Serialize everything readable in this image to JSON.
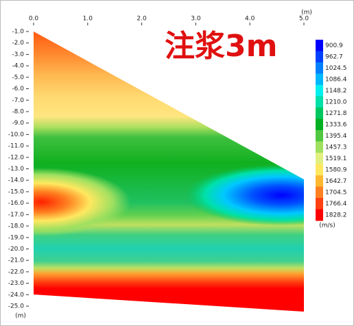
{
  "chart_data": {
    "type": "contour",
    "title": "注浆3m",
    "x_unit": "(m)",
    "y_unit": "(m)",
    "xlim": [
      0,
      5
    ],
    "xticks": [
      {
        "value": 0,
        "label": "0.0"
      },
      {
        "value": 1,
        "label": "1.0"
      },
      {
        "value": 2,
        "label": "2.0"
      },
      {
        "value": 3,
        "label": "3.0"
      },
      {
        "value": 4,
        "label": "4.0"
      },
      {
        "value": 5,
        "label": "5.0"
      }
    ],
    "ylim": [
      -1,
      -25
    ],
    "yticks": [
      {
        "value": -1,
        "label": "-1.0"
      },
      {
        "value": -2,
        "label": "-2.0"
      },
      {
        "value": -3,
        "label": "-3.0"
      },
      {
        "value": -4,
        "label": "-4.0"
      },
      {
        "value": -5,
        "label": "-5.0"
      },
      {
        "value": -6,
        "label": "-6.0"
      },
      {
        "value": -7,
        "label": "-7.0"
      },
      {
        "value": -8,
        "label": "-8.0"
      },
      {
        "value": -9,
        "label": "-9.0"
      },
      {
        "value": -10,
        "label": "-10.0"
      },
      {
        "value": -11,
        "label": "-11.0"
      },
      {
        "value": -12,
        "label": "-12.0"
      },
      {
        "value": -13,
        "label": "-13.0"
      },
      {
        "value": -14,
        "label": "-14.0"
      },
      {
        "value": -15,
        "label": "-15.0"
      },
      {
        "value": -16,
        "label": "-16.0"
      },
      {
        "value": -17,
        "label": "-17.0"
      },
      {
        "value": -18,
        "label": "-18.0"
      },
      {
        "value": -19,
        "label": "-19.0"
      },
      {
        "value": -20,
        "label": "-20.0"
      },
      {
        "value": -21,
        "label": "-21.0"
      },
      {
        "value": -22,
        "label": "-22.0"
      },
      {
        "value": -23,
        "label": "-23.0"
      },
      {
        "value": -24,
        "label": "-24.0"
      },
      {
        "value": -25,
        "label": "-25.0"
      }
    ],
    "colorbar": {
      "unit": "(m/s)",
      "ticks": [
        900.9,
        962.7,
        1024.5,
        1086.4,
        1148.2,
        {
          "value": 1210,
          "label": "1210.0"
        },
        1271.8,
        1333.6,
        1395.4,
        1457.3,
        1519.1,
        1580.9,
        1642.7,
        1704.5,
        1766.4,
        1828.2
      ],
      "colors": [
        "#0000ff",
        "#0040ff",
        "#0080ff",
        "#00b8ff",
        "#00f0f0",
        "#00e0a8",
        "#00c860",
        "#00b020",
        "#50c840",
        "#a0e060",
        "#e0f080",
        "#ffe860",
        "#ffb830",
        "#ff8020",
        "#ff4010",
        "#ff0000"
      ]
    }
  }
}
